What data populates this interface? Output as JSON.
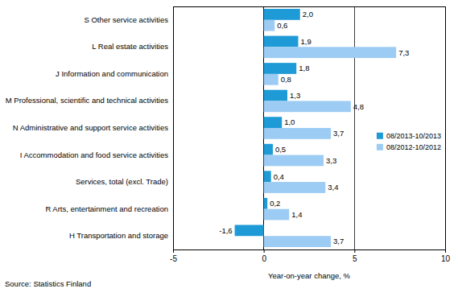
{
  "chart_data": {
    "type": "bar",
    "orientation": "horizontal",
    "categories": [
      "S Other service activities",
      "L Real estate activities",
      "J Information and communication",
      "M Professional, scientific and technical activities",
      "N Administrative and support service activities",
      "I Accommodation and food service activities",
      "Services, total (excl. Trade)",
      "R Arts, entertainment and recreation",
      "H Transportation and storage"
    ],
    "series": [
      {
        "name": "08/2013-10/2013",
        "color": "#1e9ad6",
        "values": [
          2.0,
          1.9,
          1.8,
          1.3,
          1.0,
          0.5,
          0.4,
          0.2,
          -1.6
        ],
        "value_labels": [
          "2,0",
          "1,9",
          "1,8",
          "1,3",
          "1,0",
          "0,5",
          "0,4",
          "0,2",
          "-1,6"
        ]
      },
      {
        "name": "08/2012-10/2012",
        "color": "#9ccbf3",
        "values": [
          0.6,
          7.3,
          0.8,
          4.8,
          3.7,
          3.3,
          3.4,
          1.4,
          3.7
        ],
        "value_labels": [
          "0,6",
          "7,3",
          "0,8",
          "4,8",
          "3,7",
          "3,3",
          "3,4",
          "1,4",
          "3,7"
        ]
      }
    ],
    "xlabel": "Year-on-year change, %",
    "xlim": [
      -5,
      10
    ],
    "xticks": [
      -5,
      0,
      5,
      10
    ],
    "grid": true,
    "legend": "right",
    "data_labels": true,
    "source": "Source: Statistics Finland"
  }
}
